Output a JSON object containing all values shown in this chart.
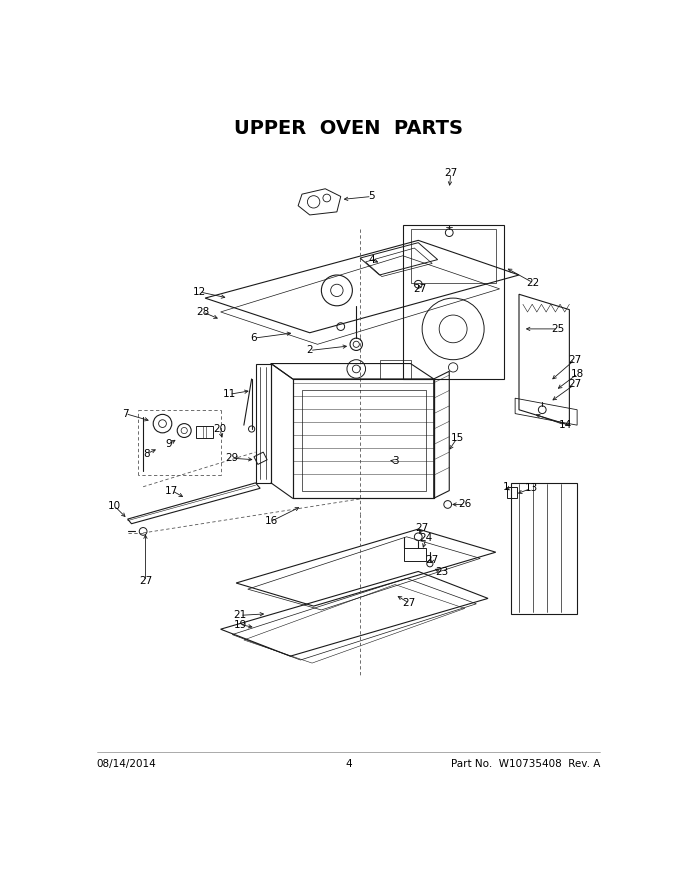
{
  "title": "UPPER  OVEN  PARTS",
  "footer_left": "08/14/2014",
  "footer_center": "4",
  "footer_right": "Part No.  W10735408  Rev. A",
  "bg_color": "#ffffff",
  "title_fontsize": 14,
  "title_fontweight": "bold",
  "lc": "#1a1a1a",
  "lw": 0.8
}
